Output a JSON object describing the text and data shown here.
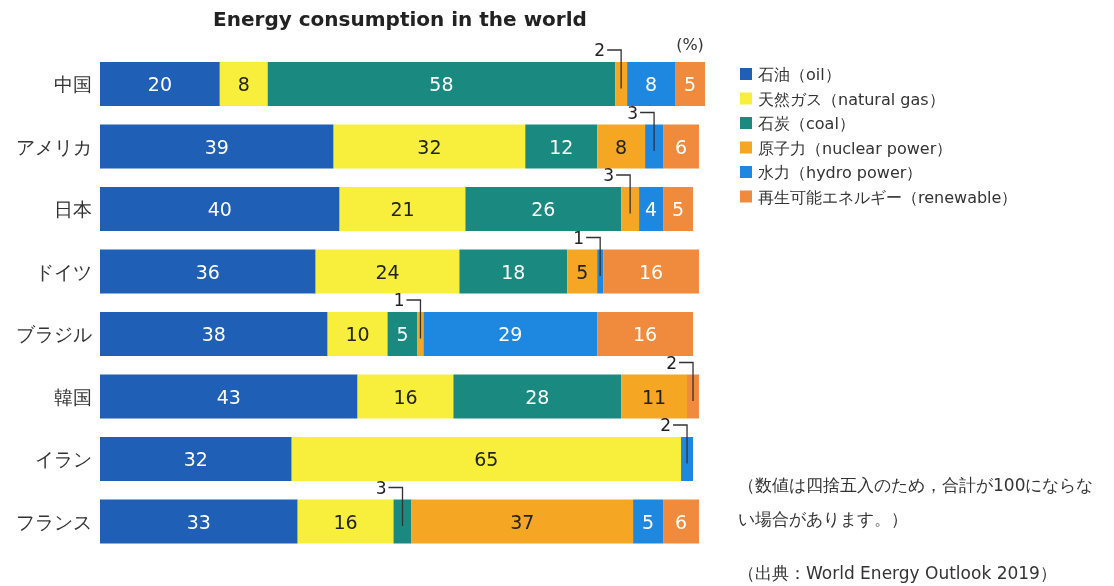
{
  "chart_data": {
    "type": "bar",
    "orientation": "horizontal",
    "stacked": true,
    "data_labels": true,
    "legend": "right",
    "grid": false,
    "title": "Energy consumption in the world",
    "categories": [
      "中国",
      "アメリカ",
      "日本",
      "ドイツ",
      "ブラジル",
      "韓国",
      "イラン",
      "フランス"
    ],
    "series": [
      {
        "name": "石油（oil）",
        "color": "#1f5fb5",
        "values": [
          20,
          39,
          40,
          36,
          38,
          43,
          32,
          33
        ]
      },
      {
        "name": "天然ガス（natural gas）",
        "color": "#f7ef3c",
        "values": [
          8,
          32,
          21,
          24,
          10,
          16,
          65,
          16
        ]
      },
      {
        "name": "石炭（coal）",
        "color": "#1a8a80",
        "values": [
          58,
          12,
          26,
          18,
          5,
          28,
          null,
          3
        ]
      },
      {
        "name": "原子力（nuclear power）",
        "color": "#f5a623",
        "values": [
          2,
          8,
          3,
          5,
          1,
          11,
          null,
          37
        ]
      },
      {
        "name": "水力（hydro power）",
        "color": "#1e88e0",
        "values": [
          8,
          3,
          4,
          1,
          29,
          null,
          2,
          5
        ]
      },
      {
        "name": "再生可能エネルギー（renewable）",
        "color": "#f08a3c",
        "values": [
          5,
          6,
          5,
          16,
          16,
          2,
          null,
          6
        ]
      }
    ],
    "annotations": [
      "(%)",
      "（数値は四捨五入のため，合計が100にならない場合があります。）",
      "（出典：World Energy Outlook 2019）"
    ]
  }
}
